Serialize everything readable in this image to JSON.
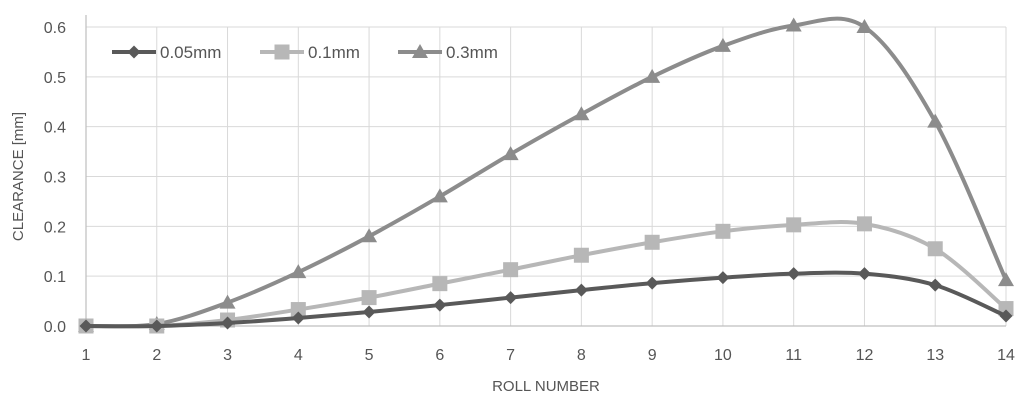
{
  "chart_data": {
    "type": "line",
    "title": "",
    "xlabel": "ROLL NUMBER",
    "ylabel": "CLEARANCE [mm]",
    "x": [
      1,
      2,
      3,
      4,
      5,
      6,
      7,
      8,
      9,
      10,
      11,
      12,
      13,
      14
    ],
    "x_tick_labels": [
      "1",
      "2",
      "3",
      "4",
      "5",
      "6",
      "7",
      "8",
      "9",
      "10",
      "11",
      "12",
      "13",
      "14"
    ],
    "ylim": [
      0,
      0.6
    ],
    "y_ticks": [
      0,
      0.1,
      0.2,
      0.3,
      0.4,
      0.5,
      0.6
    ],
    "y_tick_labels": [
      "0.0",
      "0.1",
      "0.2",
      "0.3",
      "0.4",
      "0.5",
      "0.6"
    ],
    "grid": true,
    "smooth": true,
    "legend_position": "top-left",
    "series": [
      {
        "name": "0.05mm",
        "marker": "diamond",
        "color": "#595959",
        "values": [
          0.0,
          0.0,
          0.006,
          0.016,
          0.028,
          0.042,
          0.057,
          0.072,
          0.086,
          0.097,
          0.105,
          0.105,
          0.082,
          0.02
        ]
      },
      {
        "name": "0.1mm",
        "marker": "square",
        "color": "#b7b7b7",
        "values": [
          0.0,
          0.0,
          0.012,
          0.033,
          0.057,
          0.085,
          0.113,
          0.142,
          0.168,
          0.19,
          0.203,
          0.205,
          0.155,
          0.035
        ]
      },
      {
        "name": "0.3mm",
        "marker": "triangle",
        "color": "#8c8c8c",
        "values": [
          0.0,
          0.004,
          0.047,
          0.108,
          0.18,
          0.26,
          0.345,
          0.425,
          0.5,
          0.562,
          0.603,
          0.6,
          0.41,
          0.092
        ]
      }
    ]
  }
}
